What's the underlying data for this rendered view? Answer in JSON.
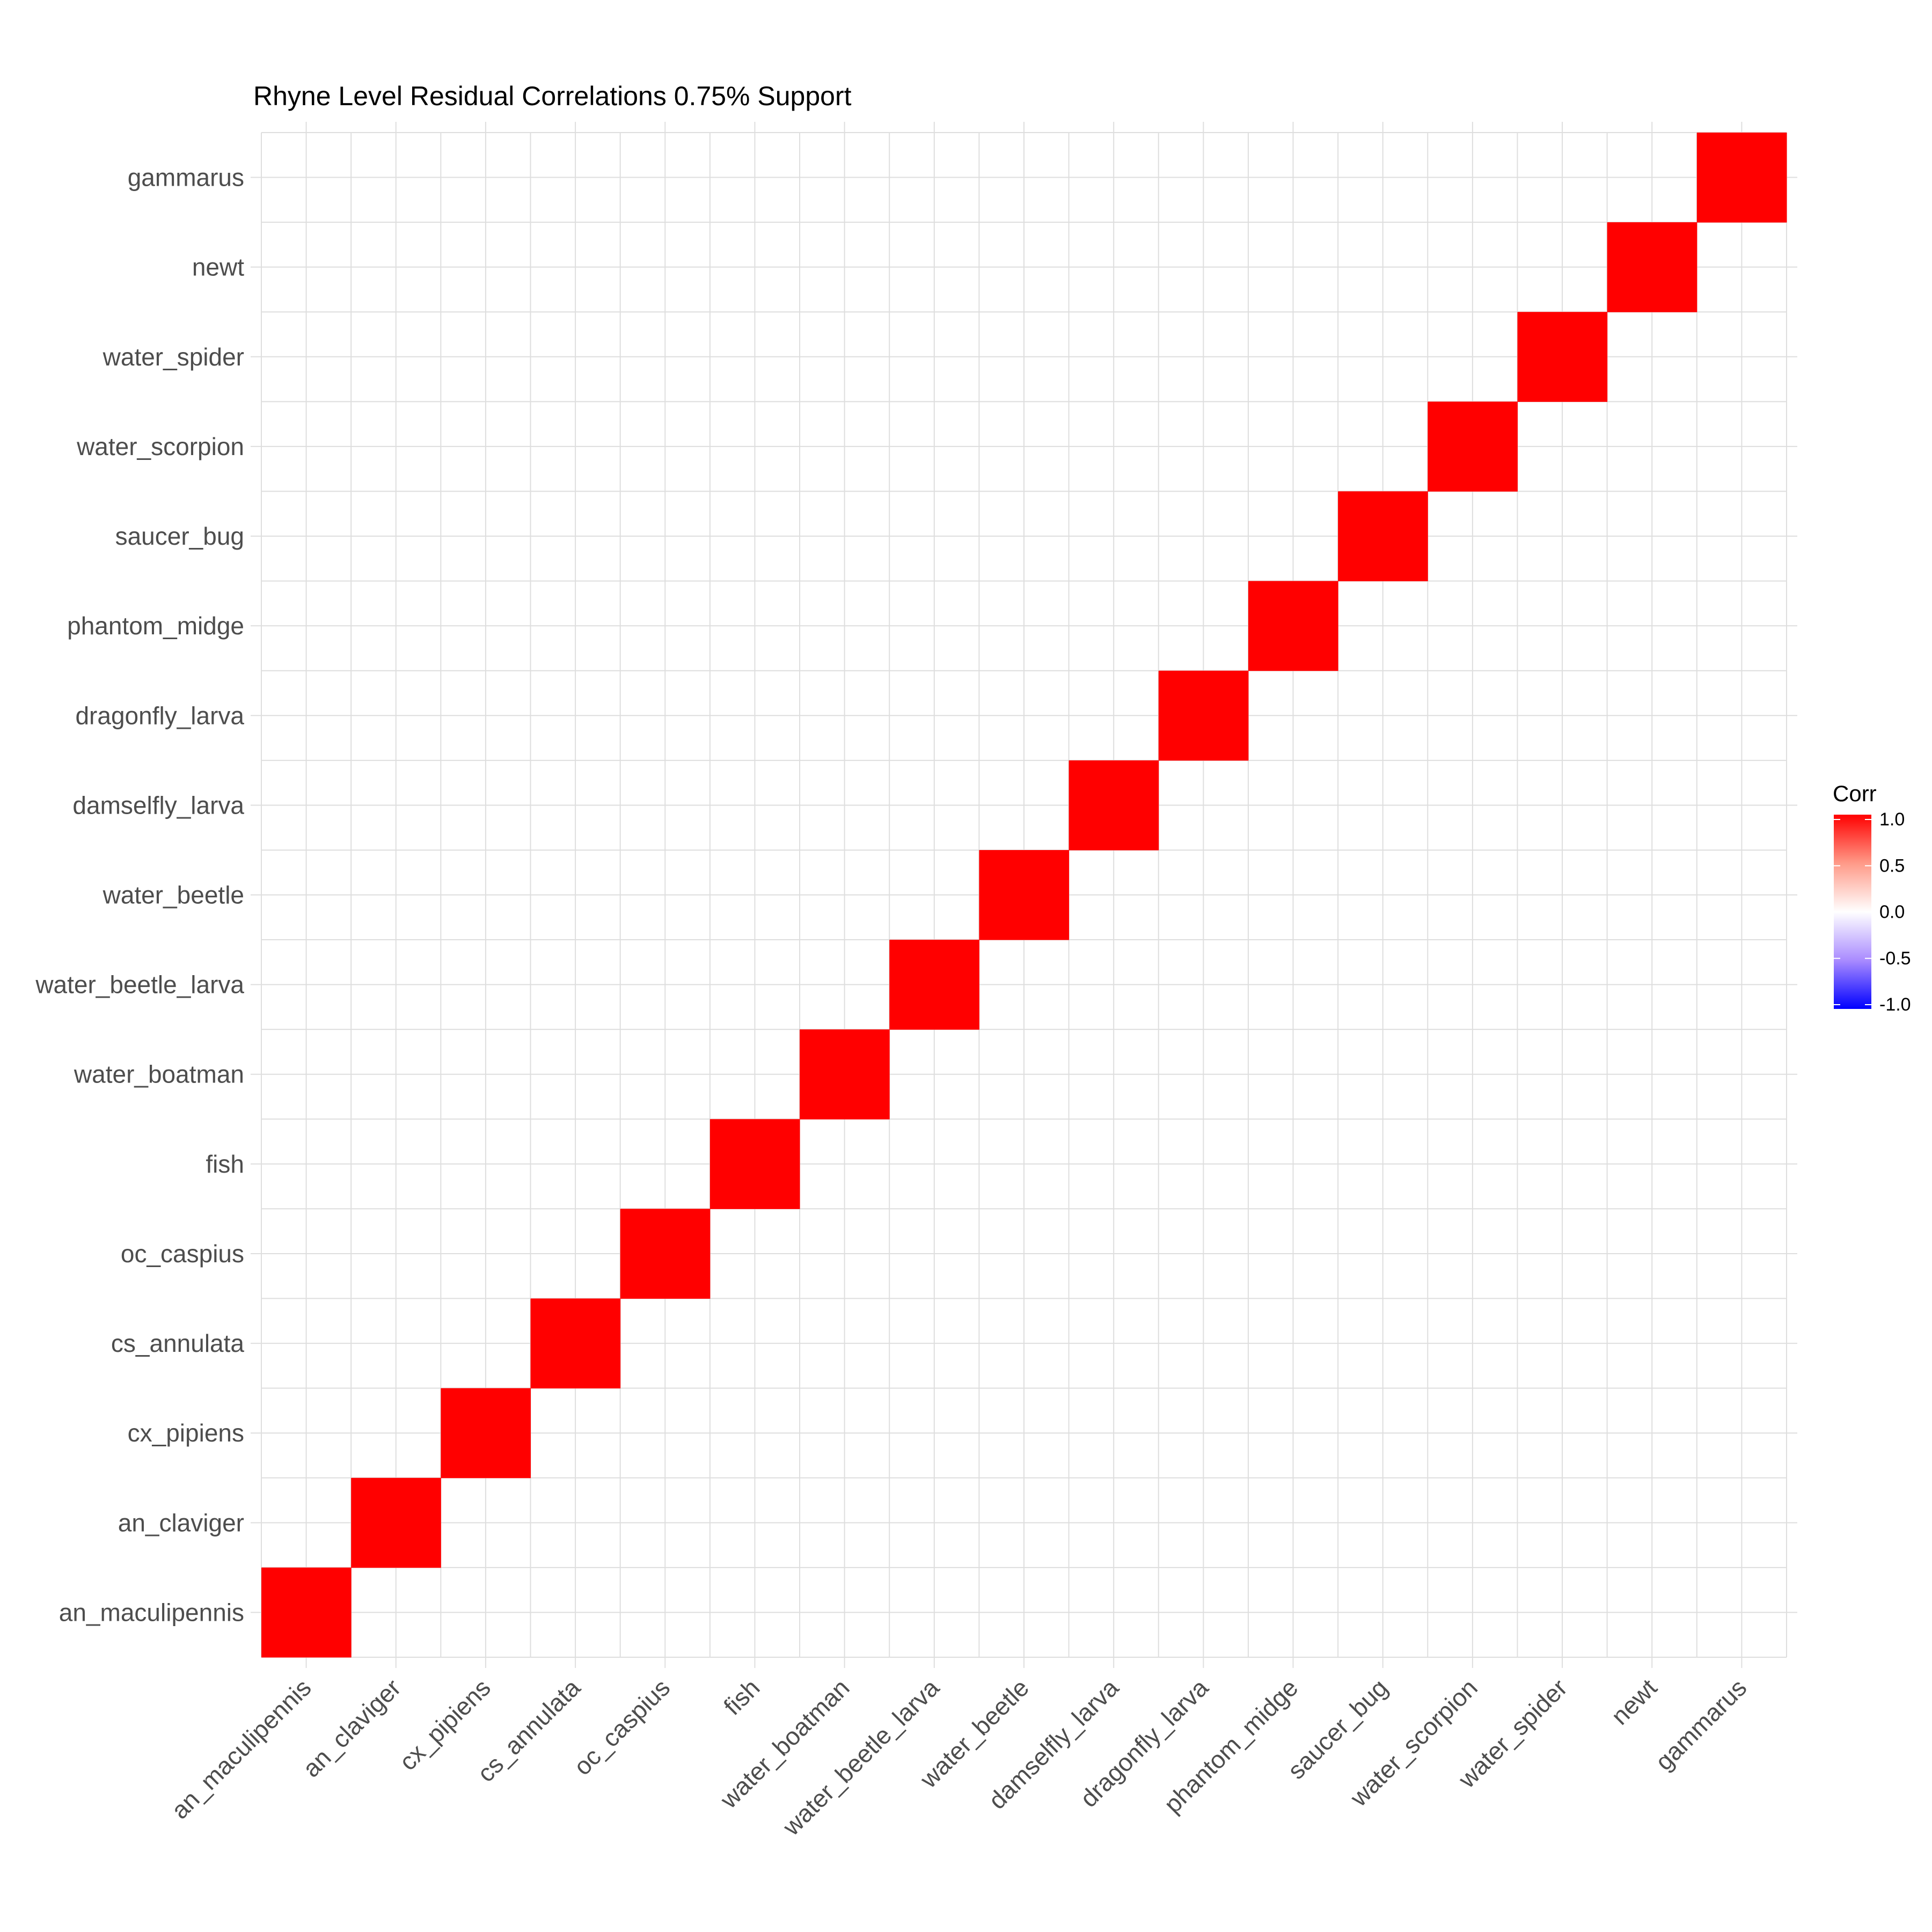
{
  "chart_data": {
    "type": "heatmap",
    "title": "Rhyne Level Residual Correlations 0.75% Support",
    "xlabel": "",
    "ylabel": "",
    "categories": [
      "an_maculipennis",
      "an_claviger",
      "cx_pipiens",
      "cs_annulata",
      "oc_caspius",
      "fish",
      "water_boatman",
      "water_beetle_larva",
      "water_beetle",
      "damselfly_larva",
      "dragonfly_larva",
      "phantom_midge",
      "saucer_bug",
      "water_scorpion",
      "water_spider",
      "newt",
      "gammarus"
    ],
    "cells": [
      {
        "x": "an_maculipennis",
        "y": "an_maculipennis",
        "value": 1.0
      },
      {
        "x": "an_claviger",
        "y": "an_claviger",
        "value": 1.0
      },
      {
        "x": "cx_pipiens",
        "y": "cx_pipiens",
        "value": 1.0
      },
      {
        "x": "cs_annulata",
        "y": "cs_annulata",
        "value": 1.0
      },
      {
        "x": "oc_caspius",
        "y": "oc_caspius",
        "value": 1.0
      },
      {
        "x": "fish",
        "y": "fish",
        "value": 1.0
      },
      {
        "x": "water_boatman",
        "y": "water_boatman",
        "value": 1.0
      },
      {
        "x": "water_beetle_larva",
        "y": "water_beetle_larva",
        "value": 1.0
      },
      {
        "x": "water_beetle",
        "y": "water_beetle",
        "value": 1.0
      },
      {
        "x": "damselfly_larva",
        "y": "damselfly_larva",
        "value": 1.0
      },
      {
        "x": "dragonfly_larva",
        "y": "dragonfly_larva",
        "value": 1.0
      },
      {
        "x": "phantom_midge",
        "y": "phantom_midge",
        "value": 1.0
      },
      {
        "x": "saucer_bug",
        "y": "saucer_bug",
        "value": 1.0
      },
      {
        "x": "water_scorpion",
        "y": "water_scorpion",
        "value": 1.0
      },
      {
        "x": "water_spider",
        "y": "water_spider",
        "value": 1.0
      },
      {
        "x": "newt",
        "y": "newt",
        "value": 1.0
      },
      {
        "x": "gammarus",
        "y": "gammarus",
        "value": 1.0
      }
    ],
    "default_value": 0.0,
    "legend": {
      "title": "Corr",
      "ticks": [
        "1.0",
        "0.5",
        "0.0",
        "-0.5",
        "-1.0"
      ],
      "range": [
        -1.0,
        1.0
      ],
      "placement": "right"
    },
    "colors": {
      "high": "#ff0000",
      "mid": "#ffffff",
      "low": "#0000ff",
      "grid": "#dedede",
      "tick_text": "#4d4d4d"
    },
    "grid": true
  }
}
